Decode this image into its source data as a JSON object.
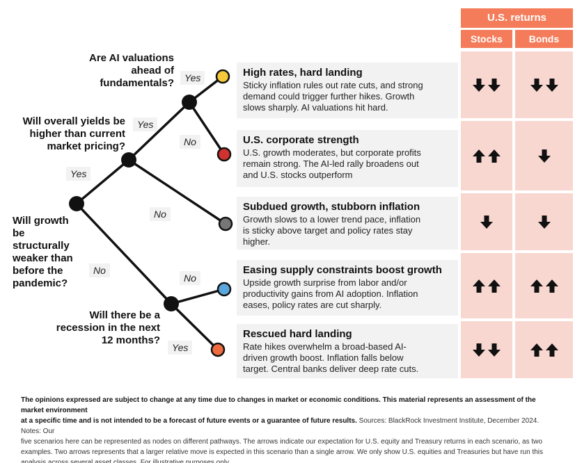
{
  "questions": {
    "q1": [
      "Will growth",
      "be",
      "structurally",
      "weaker than",
      "before the",
      "pandemic?"
    ],
    "q2": [
      "Will overall yields be",
      "higher than current",
      "market pricing?"
    ],
    "q3": [
      "Are AI valuations",
      "ahead of",
      "fundamentals?"
    ],
    "q4": [
      "Will there be a",
      "recession in the next",
      "12 months?"
    ]
  },
  "branch_labels": {
    "yes_yields": "Yes",
    "no_growth": "No",
    "yes_ai": "Yes",
    "no_ai": "No",
    "yes_growth": "Yes",
    "no_yields": "No",
    "no_recession": "No",
    "yes_recession": "Yes"
  },
  "node_colors": {
    "decision": "#111111",
    "high_rates": "#f5c93a",
    "corporate_strength": "#d0322f",
    "subdued_growth": "#777777",
    "easing_supply": "#5aa7dd",
    "rescued_landing": "#ee6a3f"
  },
  "returns": {
    "header": "U.S. returns",
    "stocks_label": "Stocks",
    "bonds_label": "Bonds"
  },
  "scenarios": [
    {
      "title": "High rates, hard landing",
      "lines": [
        "Sticky inflation rules out rate cuts, and strong",
        "demand could trigger further hikes. Growth",
        "slows sharply. AI valuations hit hard."
      ],
      "stocks": "down-down",
      "bonds": "down-down"
    },
    {
      "title": "U.S. corporate strength",
      "lines": [
        "U.S. growth moderates, but corporate profits",
        "remain strong. The AI-led rally broadens out",
        "and U.S. stocks outperform"
      ],
      "stocks": "up-up",
      "bonds": "down"
    },
    {
      "title": "Subdued growth, stubborn inflation",
      "lines": [
        "Growth slows to a lower trend pace, inflation",
        "is sticky above target and policy rates stay",
        "higher."
      ],
      "stocks": "down",
      "bonds": "down"
    },
    {
      "title": "Easing supply constraints boost growth",
      "lines": [
        "Upside growth surprise from labor and/or",
        "productivity gains from AI adoption. Inflation",
        "eases, policy rates are cut sharply."
      ],
      "stocks": "up-up",
      "bonds": "up-up"
    },
    {
      "title": "Rescued hard landing",
      "lines": [
        "Rate hikes overwhelm a broad-based AI-",
        "driven growth boost. Inflation falls below",
        "target. Central banks deliver deep rate cuts."
      ],
      "stocks": "down-down",
      "bonds": "up-up"
    }
  ],
  "footnote": {
    "bold_lines": [
      "The opinions expressed are subject to change at any time due to changes in market or economic conditions. This material represents an assessment of the market environment",
      "at a specific time and is not intended to be a forecast of future events or a guarantee of future results."
    ],
    "sources": " Sources: BlackRock Investment Institute, December 2024. Notes: Our",
    "lines": [
      "five scenarios here can be represented as nodes on different pathways. The arrows indicate our expectation for U.S. equity and Treasury returns in each scenario, as two",
      "examples. Two arrows represents that a larger relative move is expected in this scenario than a single arrow. We only show U.S. equities and Treasuries but have run this",
      "analysis across several asset classes. For illustrative purposes only."
    ]
  }
}
